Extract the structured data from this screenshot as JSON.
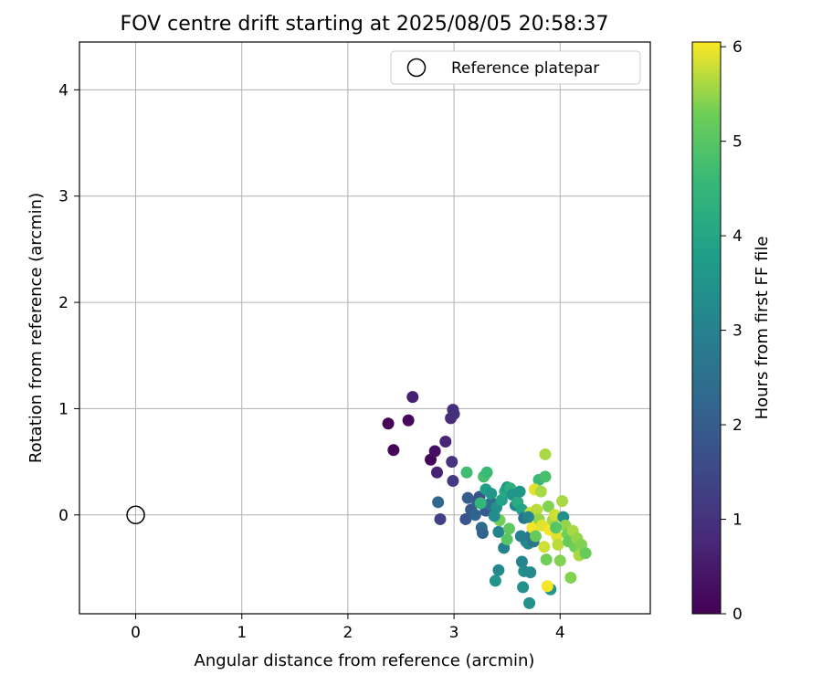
{
  "chart_data": {
    "type": "scatter",
    "title": "FOV centre drift starting at 2025/08/05 20:58:37",
    "xlabel": "Angular distance from reference (arcmin)",
    "ylabel": "Rotation from reference (arcmin)",
    "xlim": [
      -0.53,
      4.85
    ],
    "ylim": [
      -0.93,
      4.45
    ],
    "xticks": [
      0,
      1,
      2,
      3,
      4
    ],
    "yticks": [
      0,
      1,
      2,
      3,
      4
    ],
    "grid": true,
    "colormap": "viridis",
    "colorbar": {
      "label": "Hours from first FF file",
      "min": 0,
      "max": 6.05,
      "ticks": [
        0,
        1,
        2,
        3,
        4,
        5,
        6
      ]
    },
    "reference": {
      "label": "Reference platepar",
      "x": 0,
      "y": 0
    },
    "legend_position": "top-right",
    "points": [
      {
        "x": 2.38,
        "y": 0.86,
        "c": 0.05
      },
      {
        "x": 2.43,
        "y": 0.61,
        "c": 0.1
      },
      {
        "x": 2.57,
        "y": 0.89,
        "c": 0.15
      },
      {
        "x": 2.61,
        "y": 1.11,
        "c": 0.6
      },
      {
        "x": 2.78,
        "y": 0.52,
        "c": 0.1
      },
      {
        "x": 2.82,
        "y": 0.6,
        "c": 0.3
      },
      {
        "x": 2.84,
        "y": 0.4,
        "c": 0.65
      },
      {
        "x": 2.92,
        "y": 0.69,
        "c": 0.7
      },
      {
        "x": 2.97,
        "y": 0.91,
        "c": 0.85
      },
      {
        "x": 2.99,
        "y": 0.99,
        "c": 0.9
      },
      {
        "x": 3.0,
        "y": 0.95,
        "c": 0.95
      },
      {
        "x": 2.98,
        "y": 0.5,
        "c": 1.0
      },
      {
        "x": 2.99,
        "y": 0.32,
        "c": 1.2
      },
      {
        "x": 2.85,
        "y": 0.12,
        "c": 2.3
      },
      {
        "x": 2.87,
        "y": -0.04,
        "c": 1.3
      },
      {
        "x": 3.11,
        "y": -0.04,
        "c": 1.8
      },
      {
        "x": 3.13,
        "y": 0.16,
        "c": 2.0
      },
      {
        "x": 3.16,
        "y": 0.05,
        "c": 1.9
      },
      {
        "x": 3.2,
        "y": 0.0,
        "c": 2.2
      },
      {
        "x": 3.22,
        "y": 0.12,
        "c": 2.1
      },
      {
        "x": 3.24,
        "y": 0.17,
        "c": 1.7
      },
      {
        "x": 3.26,
        "y": -0.12,
        "c": 2.4
      },
      {
        "x": 3.27,
        "y": -0.17,
        "c": 2.2
      },
      {
        "x": 3.3,
        "y": 0.04,
        "c": 1.9
      },
      {
        "x": 3.33,
        "y": 0.1,
        "c": 2.5
      },
      {
        "x": 3.12,
        "y": 0.4,
        "c": 4.7
      },
      {
        "x": 3.25,
        "y": 0.11,
        "c": 4.5
      },
      {
        "x": 3.28,
        "y": 0.36,
        "c": 4.8
      },
      {
        "x": 3.31,
        "y": 0.4,
        "c": 4.6
      },
      {
        "x": 3.3,
        "y": 0.24,
        "c": 3.8
      },
      {
        "x": 3.35,
        "y": 0.2,
        "c": 3.6
      },
      {
        "x": 3.38,
        "y": 0.1,
        "c": 2.4
      },
      {
        "x": 3.4,
        "y": 0.07,
        "c": 3.4
      },
      {
        "x": 3.42,
        "y": -0.16,
        "c": 3.1
      },
      {
        "x": 3.45,
        "y": 0.14,
        "c": 3.9
      },
      {
        "x": 3.48,
        "y": 0.22,
        "c": 4.1
      },
      {
        "x": 3.5,
        "y": 0.26,
        "c": 3.7
      },
      {
        "x": 3.53,
        "y": 0.25,
        "c": 4.3
      },
      {
        "x": 3.55,
        "y": 0.19,
        "c": 3.5
      },
      {
        "x": 3.47,
        "y": -0.31,
        "c": 3.0
      },
      {
        "x": 3.5,
        "y": -0.23,
        "c": 5.0
      },
      {
        "x": 3.52,
        "y": -0.13,
        "c": 5.1
      },
      {
        "x": 3.43,
        "y": -0.05,
        "c": 5.3
      },
      {
        "x": 3.38,
        "y": -0.01,
        "c": 3.3
      },
      {
        "x": 3.42,
        "y": -0.52,
        "c": 3.2
      },
      {
        "x": 3.39,
        "y": -0.62,
        "c": 3.5
      },
      {
        "x": 3.58,
        "y": 0.09,
        "c": 3.1
      },
      {
        "x": 3.6,
        "y": 0.12,
        "c": 4.2
      },
      {
        "x": 3.62,
        "y": 0.22,
        "c": 3.6
      },
      {
        "x": 3.64,
        "y": 0.05,
        "c": 3.9
      },
      {
        "x": 3.66,
        "y": -0.03,
        "c": 2.6
      },
      {
        "x": 3.63,
        "y": -0.2,
        "c": 3.0
      },
      {
        "x": 3.68,
        "y": -0.25,
        "c": 2.9
      },
      {
        "x": 3.7,
        "y": -0.27,
        "c": 3.2
      },
      {
        "x": 3.72,
        "y": -0.2,
        "c": 2.8
      },
      {
        "x": 3.75,
        "y": -0.25,
        "c": 2.7
      },
      {
        "x": 3.64,
        "y": -0.44,
        "c": 3.1
      },
      {
        "x": 3.66,
        "y": -0.53,
        "c": 3.3
      },
      {
        "x": 3.65,
        "y": -0.68,
        "c": 3.4
      },
      {
        "x": 3.72,
        "y": -0.54,
        "c": 3.2
      },
      {
        "x": 3.71,
        "y": -0.83,
        "c": 3.4
      },
      {
        "x": 3.91,
        "y": -0.7,
        "c": 3.5
      },
      {
        "x": 3.8,
        "y": 0.33,
        "c": 4.6
      },
      {
        "x": 3.86,
        "y": 0.36,
        "c": 4.8
      },
      {
        "x": 3.76,
        "y": 0.24,
        "c": 5.9
      },
      {
        "x": 3.82,
        "y": 0.22,
        "c": 5.6
      },
      {
        "x": 3.72,
        "y": 0.02,
        "c": 5.8
      },
      {
        "x": 3.74,
        "y": -0.12,
        "c": 6.0
      },
      {
        "x": 3.77,
        "y": -0.2,
        "c": 5.2
      },
      {
        "x": 3.78,
        "y": 0.05,
        "c": 5.7
      },
      {
        "x": 3.8,
        "y": -0.04,
        "c": 5.5
      },
      {
        "x": 3.83,
        "y": -0.1,
        "c": 5.9
      },
      {
        "x": 3.85,
        "y": -0.3,
        "c": 5.8
      },
      {
        "x": 3.86,
        "y": 0.57,
        "c": 5.6
      },
      {
        "x": 3.87,
        "y": -0.42,
        "c": 5.3
      },
      {
        "x": 3.88,
        "y": -0.67,
        "c": 6.0
      },
      {
        "x": 3.89,
        "y": 0.08,
        "c": 5.4
      },
      {
        "x": 3.9,
        "y": -0.14,
        "c": 6.0
      },
      {
        "x": 3.93,
        "y": -0.05,
        "c": 5.6
      },
      {
        "x": 3.95,
        "y": 0.0,
        "c": 5.8
      },
      {
        "x": 3.97,
        "y": -0.2,
        "c": 5.9
      },
      {
        "x": 3.98,
        "y": -0.28,
        "c": 5.7
      },
      {
        "x": 4.0,
        "y": -0.43,
        "c": 5.4
      },
      {
        "x": 4.02,
        "y": 0.13,
        "c": 5.6
      },
      {
        "x": 4.03,
        "y": -0.02,
        "c": 3.4
      },
      {
        "x": 4.05,
        "y": -0.1,
        "c": 5.5
      },
      {
        "x": 4.07,
        "y": -0.18,
        "c": 5.3
      },
      {
        "x": 4.08,
        "y": -0.25,
        "c": 5.2
      },
      {
        "x": 4.1,
        "y": -0.59,
        "c": 5.4
      },
      {
        "x": 4.12,
        "y": -0.15,
        "c": 5.6
      },
      {
        "x": 4.14,
        "y": -0.3,
        "c": 5.3
      },
      {
        "x": 4.16,
        "y": -0.22,
        "c": 5.5
      },
      {
        "x": 4.18,
        "y": -0.38,
        "c": 5.6
      },
      {
        "x": 4.2,
        "y": -0.28,
        "c": 5.4
      },
      {
        "x": 4.24,
        "y": -0.36,
        "c": 5.2
      },
      {
        "x": 3.96,
        "y": -0.12,
        "c": 5.0
      },
      {
        "x": 3.7,
        "y": -0.02,
        "c": 3.1
      }
    ]
  }
}
